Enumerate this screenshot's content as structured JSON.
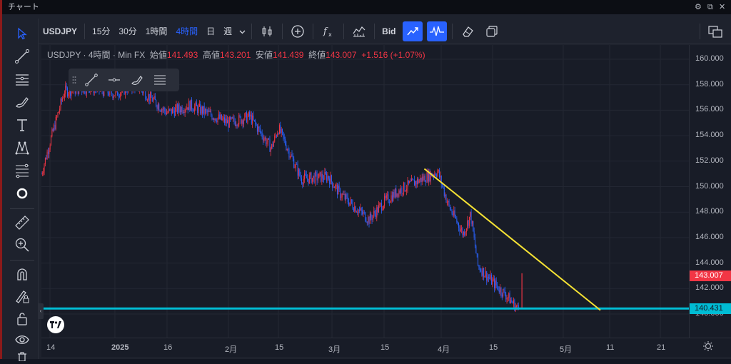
{
  "window": {
    "title": "チャート"
  },
  "toolbar": {
    "symbol": "USDJPY",
    "intervals": [
      "15分",
      "30分",
      "1時間",
      "4時間",
      "日",
      "週"
    ],
    "active_interval": "4時間",
    "bid_label": "Bid"
  },
  "legend": {
    "symbol": "USDJPY",
    "interval": "4時間",
    "source": "Min FX",
    "open_label": "始値",
    "open": "141.493",
    "high_label": "高値",
    "high": "143.201",
    "low_label": "安値",
    "low": "141.439",
    "close_label": "終値",
    "close": "143.007",
    "change": "+1.516 (+1.07%)"
  },
  "price_axis": {
    "ticks": [
      "160.000",
      "158.000",
      "156.000",
      "154.000",
      "152.000",
      "150.000",
      "148.000",
      "146.000",
      "144.000",
      "142.000",
      "140.000"
    ],
    "last_price": "143.007",
    "hline_price": "140.431",
    "last_price_color": "#f23645",
    "hline_color": "#00bcd4"
  },
  "time_axis": {
    "ticks": [
      "14",
      "2025",
      "16",
      "2月",
      "15",
      "3月",
      "15",
      "4月",
      "15",
      "5月",
      "11",
      "21"
    ]
  },
  "chart_data": {
    "type": "line",
    "title": "",
    "xlabel": "",
    "ylabel": "",
    "ylim": [
      139.5,
      161
    ],
    "x": [
      "12-07",
      "12-14",
      "12-18",
      "12-25",
      "01-01",
      "01-07",
      "01-16",
      "01-22",
      "02-01",
      "02-07",
      "02-13",
      "02-15",
      "02-21",
      "02-28",
      "03-03",
      "03-11",
      "03-15",
      "03-20",
      "03-27",
      "03-31",
      "04-03",
      "04-07",
      "04-09",
      "04-11",
      "04-15",
      "04-18",
      "04-21"
    ],
    "series": [
      {
        "values": [
          151.0,
          153.5,
          157.5,
          157.8,
          157.3,
          158.0,
          155.8,
          156.4,
          155.0,
          155.5,
          153.0,
          154.6,
          150.6,
          150.8,
          149.5,
          147.4,
          148.8,
          149.8,
          150.7,
          151.2,
          148.5,
          146.3,
          147.8,
          143.8,
          142.5,
          141.5,
          140.3
        ]
      }
    ],
    "trendline": {
      "from": {
        "x": "03-27",
        "y": 151.4
      },
      "to": {
        "x": "05-09",
        "y": 140.3
      },
      "color": "#f5e234"
    },
    "horizontal_line": {
      "y": 140.431,
      "color": "#00bcd4"
    },
    "grid": true,
    "up_color": "#f23645",
    "down_color": "#2962ff"
  },
  "colors": {
    "accent": "#2962ff",
    "background": "#181c27"
  },
  "icons": {
    "sidebar": [
      "cursor-icon",
      "trendline-icon",
      "horizontal-lines-icon",
      "brush-icon",
      "text-icon",
      "pattern-icon",
      "fib-icon",
      "circle-icon",
      "ruler-icon",
      "zoom-icon",
      "magnet-icon",
      "lock-drawing-icon",
      "lock-icon",
      "eye-icon",
      "trash-icon"
    ]
  }
}
